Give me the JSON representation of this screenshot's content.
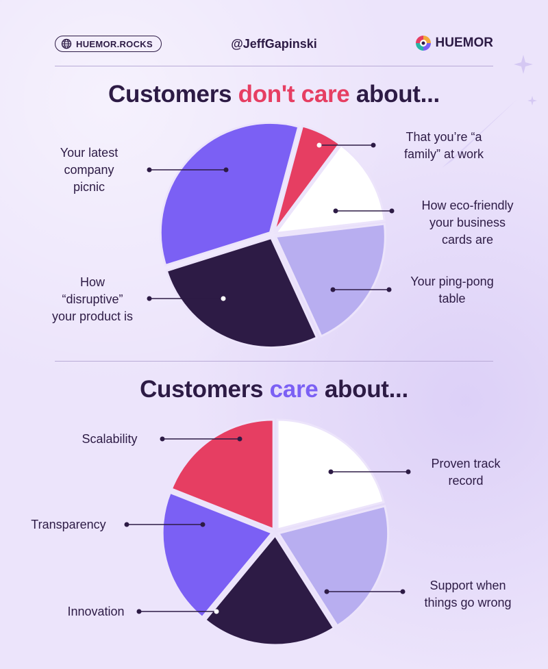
{
  "header": {
    "site_label": "HUEMOR.ROCKS",
    "handle": "@JeffGapinski",
    "brand_name": "HUEMOR"
  },
  "colors": {
    "background": "#ece4fb",
    "dark": "#2d1b45",
    "red": "#e63e62",
    "purple": "#7b60f4",
    "lavender": "#b8aef0",
    "white": "#ffffff"
  },
  "sections": {
    "dont_care": {
      "title_before": "Customers ",
      "title_accent": "don't care",
      "title_after": " about..."
    },
    "care": {
      "title_before": "Customers ",
      "title_accent": "care",
      "title_after": " about..."
    }
  },
  "chart_data": [
    {
      "type": "pie",
      "title": "Customers don't care about...",
      "categories": [
        "That you’re “a family” at work",
        "How eco-friendly your business cards are",
        "Your ping-pong table",
        "How “disruptive” your product is",
        "Your latest company picnic"
      ],
      "values": [
        6,
        13,
        20,
        27,
        34
      ],
      "colors": [
        "#e63e62",
        "#ffffff",
        "#b8aef0",
        "#2d1b45",
        "#7b60f4"
      ]
    },
    {
      "type": "pie",
      "title": "Customers care about...",
      "categories": [
        "Proven track record",
        "Support when things go wrong",
        "Innovation",
        "Transparency",
        "Scalability"
      ],
      "values": [
        21,
        20,
        20,
        20,
        19
      ],
      "colors": [
        "#ffffff",
        "#b8aef0",
        "#2d1b45",
        "#7b60f4",
        "#e63e62"
      ]
    }
  ]
}
